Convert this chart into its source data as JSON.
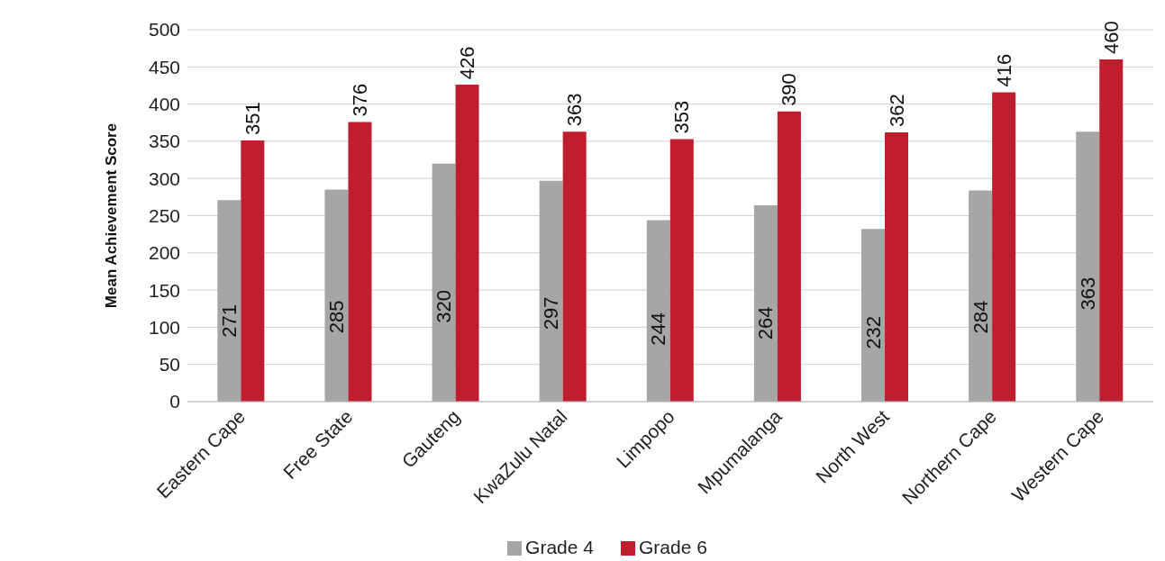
{
  "chart_data": {
    "type": "bar",
    "ylabel": "Mean Achievement Score",
    "categories": [
      "Eastern Cape",
      "Free State",
      "Gauteng",
      "KwaZulu Natal",
      "Limpopo",
      "Mpumalanga",
      "North West",
      "Northern Cape",
      "Western Cape"
    ],
    "series": [
      {
        "name": "Grade 4",
        "color": "#a6a6a6",
        "values": [
          271,
          285,
          320,
          297,
          244,
          264,
          232,
          284,
          363
        ]
      },
      {
        "name": "Grade 6",
        "color": "#be1e2d",
        "values": [
          351,
          376,
          426,
          363,
          353,
          390,
          362,
          416,
          460
        ]
      }
    ],
    "ylim": [
      0,
      500
    ],
    "yticks": [
      0,
      50,
      100,
      150,
      200,
      250,
      300,
      350,
      400,
      450,
      500
    ],
    "grid": "y",
    "legend": "bottom",
    "data_labels": true
  }
}
